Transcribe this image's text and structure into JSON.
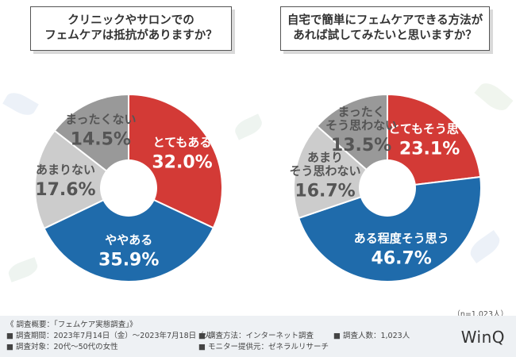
{
  "chart_data": [
    {
      "type": "pie",
      "title": "クリニックやサロンでの\nフェムケアは抵抗がありますか？",
      "slices": [
        {
          "label": "とてもある",
          "value": 32.0,
          "value_text": "32.0%",
          "color": "#d33a36",
          "text_color": "#ffffff"
        },
        {
          "label": "ややある",
          "value": 35.9,
          "value_text": "35.9%",
          "color": "#1f6bab",
          "text_color": "#ffffff"
        },
        {
          "label": "あまりない",
          "value": 17.6,
          "value_text": "17.6%",
          "color": "#cccccc",
          "text_color": "#555555"
        },
        {
          "label": "まったくない",
          "value": 14.5,
          "value_text": "14.5%",
          "color": "#999999",
          "text_color": "#555555"
        }
      ]
    },
    {
      "type": "pie",
      "title": "自宅で簡単にフェムケアできる方法が\nあれば試してみたいと思いますか？",
      "slices": [
        {
          "label": "とてもそう思う",
          "value": 23.1,
          "value_text": "23.1%",
          "color": "#d33a36",
          "text_color": "#ffffff"
        },
        {
          "label": "ある程度そう思う",
          "value": 46.7,
          "value_text": "46.7%",
          "color": "#1f6bab",
          "text_color": "#ffffff"
        },
        {
          "label": "あまり\nそう思わない",
          "value": 16.7,
          "value_text": "16.7%",
          "color": "#cccccc",
          "text_color": "#555555"
        },
        {
          "label": "まったく\nそう思わない",
          "value": 13.5,
          "value_text": "13.5%",
          "color": "#999999",
          "text_color": "#555555"
        }
      ]
    }
  ],
  "sample_size": "（n=1,023人）",
  "footer": {
    "title": "《 調査概要：「フェムケア実態調査」》",
    "period": "■ 調査期間：2023年7月14日（金）～2023年7月18日（火）",
    "target": "■ 調査対象：20代～50代の女性",
    "method": "■ 調査方法：インターネット調査",
    "provider": "■ モニター提供元：ゼネラルリサーチ",
    "count": "■ 調査人数：1,023人"
  },
  "logo": "WinQ"
}
